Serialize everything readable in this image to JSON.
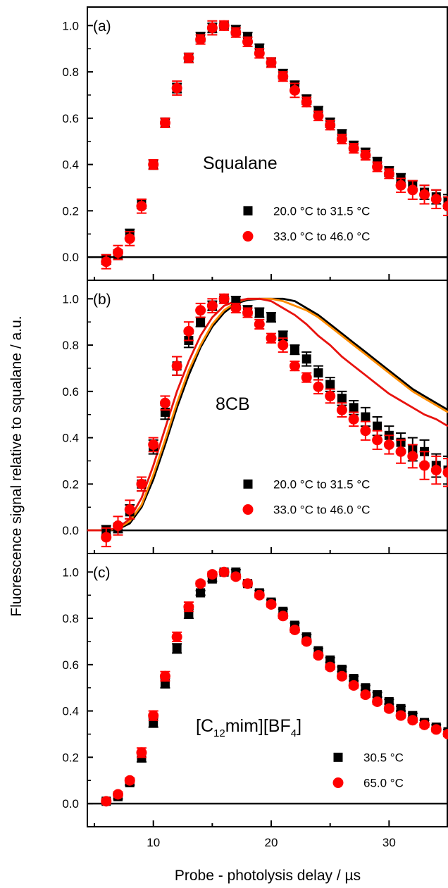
{
  "figure": {
    "ylabel": "Fluorescence signal relative to squalane / a.u.",
    "xlabel": "Probe - photolysis delay / µs",
    "x_ticks": [
      10,
      20,
      30
    ],
    "y_ticks": [
      0.0,
      0.2,
      0.4,
      0.6,
      0.8,
      1.0
    ],
    "y_tick_labels": [
      "0.0",
      "0.2",
      "0.4",
      "0.6",
      "0.8",
      "1.0"
    ],
    "colors": {
      "series_a": "#000000",
      "series_b": "#ff0000",
      "curve_black": "#000000",
      "curve_orange": "#ff8c00",
      "curve_red": "#e8130f"
    }
  },
  "chart_data": [
    {
      "type": "scatter",
      "panel_label": "(a)",
      "annotation": "Squalane",
      "xlim": [
        4.4,
        35
      ],
      "ylim": [
        -0.1,
        1.08
      ],
      "grid": false,
      "legend_position": "bottom-right",
      "series": [
        {
          "name": "20.0 °C to 31.5 °C",
          "marker": "square",
          "color": "#000000",
          "x": [
            6,
            7,
            8,
            9,
            10,
            11,
            12,
            13,
            14,
            15,
            16,
            17,
            18,
            19,
            20,
            21,
            22,
            23,
            24,
            25,
            26,
            27,
            28,
            29,
            30,
            31,
            32,
            33,
            34,
            35
          ],
          "y": [
            -0.01,
            0.01,
            0.1,
            0.23,
            0.4,
            0.58,
            0.73,
            0.86,
            0.95,
            0.99,
            1.0,
            0.98,
            0.95,
            0.9,
            0.84,
            0.79,
            0.74,
            0.68,
            0.63,
            0.58,
            0.53,
            0.48,
            0.45,
            0.41,
            0.37,
            0.34,
            0.31,
            0.28,
            0.26,
            0.24
          ],
          "err": [
            0.02,
            0.02,
            0.02,
            0.02,
            0.02,
            0.02,
            0.02,
            0.02,
            0.02,
            0.02,
            0.01,
            0.02,
            0.02,
            0.02,
            0.02,
            0.02,
            0.02,
            0.02,
            0.02,
            0.02,
            0.02,
            0.02,
            0.02,
            0.02,
            0.02,
            0.02,
            0.02,
            0.03,
            0.03,
            0.03
          ]
        },
        {
          "name": "33.0 °C to 46.0 °C",
          "marker": "circle",
          "color": "#ff0000",
          "x": [
            6,
            7,
            8,
            9,
            10,
            11,
            12,
            13,
            14,
            15,
            16,
            17,
            18,
            19,
            20,
            21,
            22,
            23,
            24,
            25,
            26,
            27,
            28,
            29,
            30,
            31,
            32,
            33,
            34,
            35
          ],
          "y": [
            -0.02,
            0.02,
            0.08,
            0.22,
            0.4,
            0.58,
            0.73,
            0.86,
            0.94,
            0.99,
            1.0,
            0.97,
            0.93,
            0.88,
            0.84,
            0.78,
            0.72,
            0.67,
            0.61,
            0.57,
            0.51,
            0.47,
            0.44,
            0.39,
            0.36,
            0.31,
            0.29,
            0.27,
            0.25,
            0.22
          ],
          "err": [
            0.03,
            0.03,
            0.03,
            0.03,
            0.02,
            0.02,
            0.03,
            0.02,
            0.02,
            0.03,
            0.02,
            0.02,
            0.02,
            0.02,
            0.02,
            0.02,
            0.03,
            0.02,
            0.02,
            0.02,
            0.02,
            0.02,
            0.02,
            0.02,
            0.02,
            0.03,
            0.04,
            0.04,
            0.04,
            0.04
          ]
        }
      ]
    },
    {
      "type": "scatter",
      "panel_label": "(b)",
      "annotation": "8CB",
      "xlim": [
        4.4,
        35
      ],
      "ylim": [
        -0.1,
        1.08
      ],
      "grid": false,
      "legend_position": "bottom-right",
      "series": [
        {
          "name": "20.0 °C to 31.5 °C",
          "marker": "square",
          "color": "#000000",
          "x": [
            6,
            7,
            8,
            9,
            10,
            11,
            12,
            13,
            14,
            15,
            16,
            17,
            18,
            19,
            20,
            21,
            22,
            23,
            24,
            25,
            26,
            27,
            28,
            29,
            30,
            31,
            32,
            33,
            34,
            35
          ],
          "y": [
            0.0,
            0.01,
            0.08,
            0.2,
            0.36,
            0.51,
            0.71,
            0.82,
            0.9,
            0.97,
            1.0,
            0.99,
            0.95,
            0.94,
            0.92,
            0.84,
            0.78,
            0.74,
            0.68,
            0.63,
            0.57,
            0.53,
            0.49,
            0.45,
            0.41,
            0.38,
            0.35,
            0.34,
            0.28,
            0.26
          ],
          "err": [
            0.02,
            0.02,
            0.03,
            0.03,
            0.03,
            0.03,
            0.04,
            0.03,
            0.02,
            0.02,
            0.01,
            0.02,
            0.02,
            0.02,
            0.02,
            0.02,
            0.02,
            0.03,
            0.03,
            0.03,
            0.03,
            0.03,
            0.04,
            0.04,
            0.04,
            0.04,
            0.05,
            0.05,
            0.05,
            0.06
          ]
        },
        {
          "name": "33.0 °C to 46.0 °C",
          "marker": "circle",
          "color": "#ff0000",
          "x": [
            6,
            7,
            8,
            9,
            10,
            11,
            12,
            13,
            14,
            15,
            16,
            17,
            18,
            19,
            20,
            21,
            22,
            23,
            24,
            25,
            26,
            27,
            28,
            29,
            30,
            31,
            32,
            33,
            34,
            35
          ],
          "y": [
            -0.03,
            0.02,
            0.09,
            0.2,
            0.37,
            0.55,
            0.71,
            0.86,
            0.95,
            0.97,
            1.0,
            0.96,
            0.94,
            0.89,
            0.83,
            0.8,
            0.71,
            0.66,
            0.62,
            0.58,
            0.52,
            0.48,
            0.43,
            0.39,
            0.37,
            0.34,
            0.32,
            0.28,
            0.26,
            0.25
          ],
          "err": [
            0.04,
            0.04,
            0.04,
            0.03,
            0.03,
            0.03,
            0.04,
            0.04,
            0.03,
            0.03,
            0.02,
            0.02,
            0.02,
            0.02,
            0.02,
            0.03,
            0.02,
            0.02,
            0.03,
            0.03,
            0.03,
            0.03,
            0.04,
            0.04,
            0.04,
            0.05,
            0.05,
            0.06,
            0.06,
            0.06
          ]
        }
      ],
      "curves": [
        {
          "color": "#000000",
          "x": [
            4.4,
            6,
            7,
            8,
            9,
            10,
            11,
            12,
            13,
            14,
            15,
            16,
            17,
            18,
            19,
            20,
            21,
            22,
            23,
            24,
            25,
            26,
            27,
            28,
            29,
            30,
            31,
            32,
            33,
            34,
            35
          ],
          "y": [
            0.0,
            0.0,
            0.005,
            0.03,
            0.1,
            0.22,
            0.37,
            0.53,
            0.67,
            0.79,
            0.88,
            0.94,
            0.98,
            0.995,
            1.0,
            1.0,
            1.0,
            0.99,
            0.96,
            0.93,
            0.89,
            0.85,
            0.81,
            0.77,
            0.73,
            0.69,
            0.65,
            0.61,
            0.58,
            0.55,
            0.52
          ]
        },
        {
          "color": "#ff8c00",
          "x": [
            4.4,
            6,
            7,
            8,
            9,
            10,
            11,
            12,
            13,
            14,
            15,
            16,
            17,
            18,
            19,
            20,
            21,
            22,
            23,
            24,
            25,
            26,
            27,
            28,
            29,
            30,
            31,
            32,
            33,
            34,
            35
          ],
          "y": [
            0.0,
            0.0,
            0.007,
            0.04,
            0.11,
            0.24,
            0.39,
            0.55,
            0.69,
            0.8,
            0.89,
            0.95,
            0.985,
            1.0,
            1.0,
            1.0,
            0.99,
            0.97,
            0.95,
            0.92,
            0.88,
            0.84,
            0.8,
            0.76,
            0.72,
            0.68,
            0.64,
            0.6,
            0.57,
            0.54,
            0.51
          ]
        },
        {
          "color": "#e8130f",
          "x": [
            4.4,
            6,
            7,
            8,
            9,
            10,
            11,
            12,
            13,
            14,
            15,
            16,
            17,
            18,
            19,
            20,
            21,
            22,
            23,
            24,
            25,
            26,
            27,
            28,
            29,
            30,
            31,
            32,
            33,
            34,
            35
          ],
          "y": [
            0.0,
            0.0,
            0.01,
            0.05,
            0.14,
            0.28,
            0.44,
            0.6,
            0.73,
            0.84,
            0.92,
            0.97,
            0.99,
            1.0,
            1.0,
            0.99,
            0.96,
            0.93,
            0.89,
            0.84,
            0.8,
            0.75,
            0.71,
            0.67,
            0.63,
            0.59,
            0.56,
            0.53,
            0.5,
            0.48,
            0.45
          ]
        }
      ]
    },
    {
      "type": "scatter",
      "panel_label": "(c)",
      "annotation": {
        "parts": [
          "[C",
          "12",
          "mim][BF",
          "4",
          "]"
        ]
      },
      "xlim": [
        4.4,
        35
      ],
      "ylim": [
        -0.1,
        1.08
      ],
      "grid": false,
      "legend_position": "bottom-right",
      "series": [
        {
          "name": "30.5 °C",
          "marker": "square",
          "color": "#000000",
          "x": [
            6,
            7,
            8,
            9,
            10,
            11,
            12,
            13,
            14,
            15,
            16,
            17,
            18,
            19,
            20,
            21,
            22,
            23,
            24,
            25,
            26,
            27,
            28,
            29,
            30,
            31,
            32,
            33,
            34,
            35
          ],
          "y": [
            0.01,
            0.03,
            0.09,
            0.2,
            0.35,
            0.52,
            0.67,
            0.82,
            0.91,
            0.97,
            1.0,
            1.0,
            0.95,
            0.91,
            0.87,
            0.83,
            0.77,
            0.72,
            0.66,
            0.62,
            0.58,
            0.54,
            0.5,
            0.47,
            0.44,
            0.41,
            0.38,
            0.35,
            0.33,
            0.31
          ],
          "err": [
            0.01,
            0.01,
            0.01,
            0.02,
            0.02,
            0.02,
            0.02,
            0.02,
            0.01,
            0.01,
            0.01,
            0.01,
            0.01,
            0.01,
            0.01,
            0.01,
            0.01,
            0.01,
            0.01,
            0.01,
            0.01,
            0.01,
            0.01,
            0.01,
            0.01,
            0.01,
            0.01,
            0.01,
            0.01,
            0.01
          ]
        },
        {
          "name": "65.0 °C",
          "marker": "circle",
          "color": "#ff0000",
          "x": [
            6,
            7,
            8,
            9,
            10,
            11,
            12,
            13,
            14,
            15,
            16,
            17,
            18,
            19,
            20,
            21,
            22,
            23,
            24,
            25,
            26,
            27,
            28,
            29,
            30,
            31,
            32,
            33,
            34,
            35
          ],
          "y": [
            0.01,
            0.04,
            0.1,
            0.22,
            0.38,
            0.55,
            0.72,
            0.85,
            0.95,
            0.99,
            1.0,
            0.98,
            0.95,
            0.9,
            0.86,
            0.81,
            0.75,
            0.7,
            0.64,
            0.59,
            0.55,
            0.51,
            0.47,
            0.44,
            0.41,
            0.38,
            0.36,
            0.34,
            0.32,
            0.3
          ],
          "err": [
            0.01,
            0.01,
            0.01,
            0.02,
            0.02,
            0.02,
            0.02,
            0.02,
            0.01,
            0.01,
            0.01,
            0.01,
            0.01,
            0.01,
            0.01,
            0.01,
            0.01,
            0.01,
            0.01,
            0.01,
            0.01,
            0.01,
            0.01,
            0.01,
            0.01,
            0.01,
            0.01,
            0.01,
            0.01,
            0.01
          ]
        }
      ]
    }
  ]
}
